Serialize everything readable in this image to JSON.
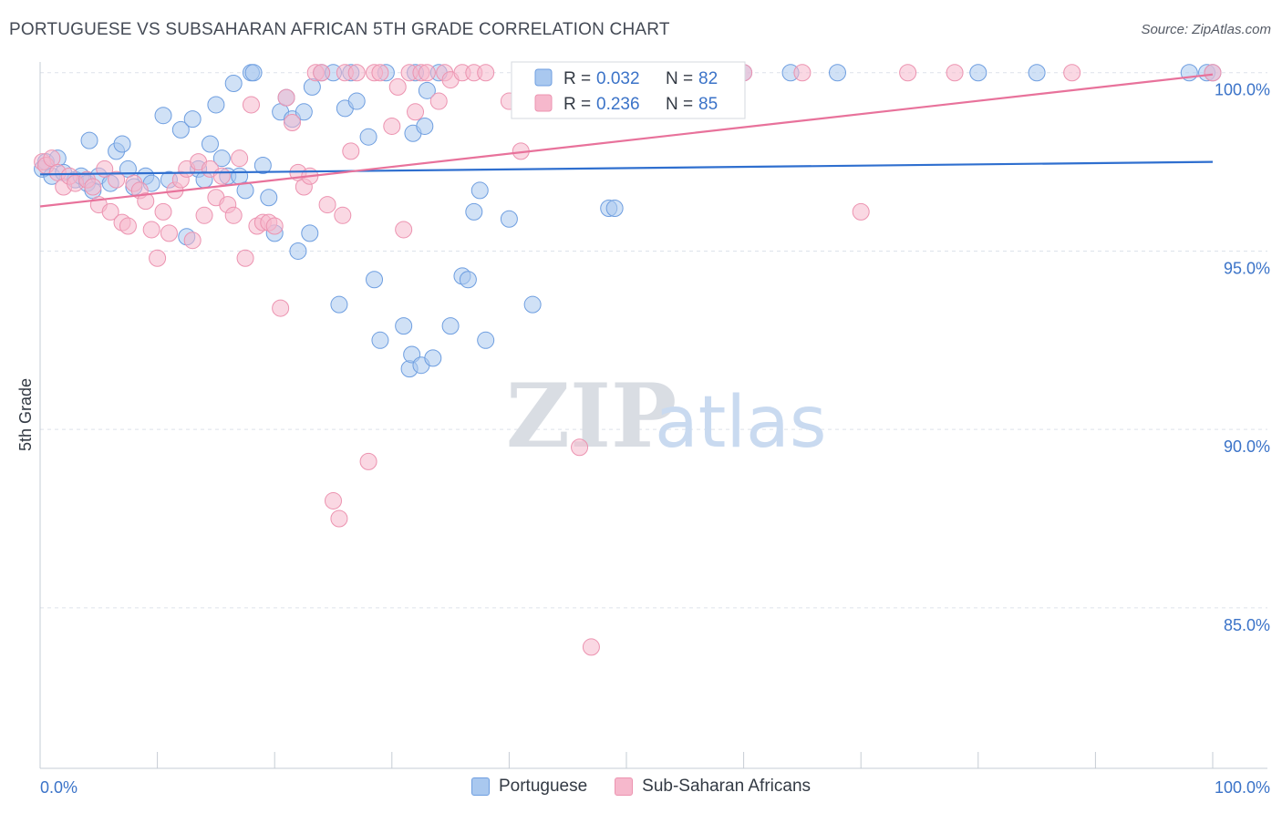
{
  "title": "PORTUGUESE VS SUBSAHARAN AFRICAN 5TH GRADE CORRELATION CHART",
  "source": "Source: ZipAtlas.com",
  "watermark": {
    "zip": "ZIP",
    "atlas": "atlas"
  },
  "colors": {
    "blue_fill": "#a9c8ef",
    "blue_stroke": "#6e9ee0",
    "blue_line": "#2f6fcf",
    "pink_fill": "#f6b8cc",
    "pink_stroke": "#ec93b0",
    "pink_line": "#e8729b",
    "axis_label": "#3b73c8",
    "grid": "#dde2ea"
  },
  "legend_stats": [
    {
      "r_label": "R = ",
      "r_value": "0.032",
      "n_label": "N = ",
      "n_value": "82"
    },
    {
      "r_label": "R = ",
      "r_value": "0.236",
      "n_label": "N = ",
      "n_value": "85"
    }
  ],
  "chart_data": {
    "type": "scatter",
    "title": "PORTUGUESE VS SUBSAHARAN AFRICAN 5TH GRADE CORRELATION CHART",
    "xlabel": "",
    "ylabel": "5th Grade",
    "xlim": [
      0,
      100
    ],
    "ylim": [
      80.5,
      100.3
    ],
    "x_tick_labels": [
      "0.0%",
      "100.0%"
    ],
    "y_ticks": [
      85,
      90,
      95,
      100
    ],
    "y_tick_labels": [
      "85.0%",
      "90.0%",
      "95.0%",
      "100.0%"
    ],
    "grid": true,
    "legend_position": "top-center",
    "series": [
      {
        "name": "Portuguese",
        "r": 0.032,
        "n": 82,
        "trend": {
          "x": [
            0,
            100
          ],
          "y": [
            97.15,
            97.5
          ]
        },
        "points": [
          [
            0.2,
            97.3
          ],
          [
            0.5,
            97.5
          ],
          [
            1.0,
            97.1
          ],
          [
            1.5,
            97.6
          ],
          [
            2.0,
            97.2
          ],
          [
            3.0,
            97.0
          ],
          [
            3.5,
            97.1
          ],
          [
            4.0,
            96.9
          ],
          [
            4.5,
            96.7
          ],
          [
            4.2,
            98.1
          ],
          [
            5.0,
            97.1
          ],
          [
            6.0,
            96.9
          ],
          [
            6.5,
            97.8
          ],
          [
            7.0,
            98.0
          ],
          [
            7.5,
            97.3
          ],
          [
            8.0,
            96.8
          ],
          [
            9.0,
            97.1
          ],
          [
            9.5,
            96.9
          ],
          [
            10.5,
            98.8
          ],
          [
            11.0,
            97.0
          ],
          [
            12.0,
            98.4
          ],
          [
            12.5,
            95.4
          ],
          [
            13.0,
            98.7
          ],
          [
            13.5,
            97.3
          ],
          [
            14.0,
            97.0
          ],
          [
            14.5,
            98.0
          ],
          [
            15.0,
            99.1
          ],
          [
            15.5,
            97.6
          ],
          [
            16.0,
            97.1
          ],
          [
            16.5,
            99.7
          ],
          [
            17.0,
            97.1
          ],
          [
            17.5,
            96.7
          ],
          [
            18.0,
            100.0
          ],
          [
            18.2,
            100.0
          ],
          [
            19.0,
            97.4
          ],
          [
            19.5,
            96.5
          ],
          [
            20.0,
            95.5
          ],
          [
            20.5,
            98.9
          ],
          [
            21.0,
            99.3
          ],
          [
            21.5,
            98.7
          ],
          [
            22.0,
            95.0
          ],
          [
            22.5,
            98.9
          ],
          [
            23.0,
            95.5
          ],
          [
            23.2,
            99.6
          ],
          [
            24.0,
            100.0
          ],
          [
            25.0,
            100.0
          ],
          [
            25.5,
            93.5
          ],
          [
            26.0,
            99.0
          ],
          [
            26.5,
            100.0
          ],
          [
            27.0,
            99.2
          ],
          [
            28.0,
            98.2
          ],
          [
            28.5,
            94.2
          ],
          [
            29.0,
            92.5
          ],
          [
            29.5,
            100.0
          ],
          [
            31.0,
            92.9
          ],
          [
            31.5,
            91.7
          ],
          [
            31.7,
            92.1
          ],
          [
            31.8,
            98.3
          ],
          [
            32.0,
            100.0
          ],
          [
            32.5,
            91.8
          ],
          [
            32.8,
            98.5
          ],
          [
            33.0,
            99.5
          ],
          [
            33.5,
            92.0
          ],
          [
            34.0,
            100.0
          ],
          [
            35.0,
            92.9
          ],
          [
            36.0,
            94.3
          ],
          [
            36.5,
            94.2
          ],
          [
            37.0,
            96.1
          ],
          [
            37.5,
            96.7
          ],
          [
            38.0,
            92.5
          ],
          [
            40.0,
            95.9
          ],
          [
            42.0,
            93.5
          ],
          [
            48.5,
            96.2
          ],
          [
            49.0,
            96.2
          ],
          [
            60.0,
            100.0
          ],
          [
            64.0,
            100.0
          ],
          [
            68.0,
            100.0
          ],
          [
            80.0,
            100.0
          ],
          [
            85.0,
            100.0
          ],
          [
            98.0,
            100.0
          ],
          [
            99.5,
            100.0
          ],
          [
            100.0,
            100.0
          ]
        ]
      },
      {
        "name": "Sub-Saharan Africans",
        "r": 0.236,
        "n": 85,
        "trend": {
          "x": [
            0,
            100
          ],
          "y": [
            96.25,
            99.95
          ]
        },
        "points": [
          [
            0.2,
            97.5
          ],
          [
            0.5,
            97.4
          ],
          [
            1.0,
            97.6
          ],
          [
            1.5,
            97.2
          ],
          [
            2.0,
            96.8
          ],
          [
            2.5,
            97.1
          ],
          [
            3.0,
            96.9
          ],
          [
            4.0,
            97.0
          ],
          [
            4.5,
            96.8
          ],
          [
            5.0,
            96.3
          ],
          [
            5.5,
            97.3
          ],
          [
            6.0,
            96.1
          ],
          [
            6.5,
            97.0
          ],
          [
            7.0,
            95.8
          ],
          [
            7.5,
            95.7
          ],
          [
            8.0,
            96.9
          ],
          [
            8.5,
            96.7
          ],
          [
            9.0,
            96.4
          ],
          [
            9.5,
            95.6
          ],
          [
            10.0,
            94.8
          ],
          [
            10.5,
            96.1
          ],
          [
            11.0,
            95.5
          ],
          [
            11.5,
            96.7
          ],
          [
            12.0,
            97.0
          ],
          [
            12.5,
            97.3
          ],
          [
            13.0,
            95.3
          ],
          [
            13.5,
            97.5
          ],
          [
            14.0,
            96.0
          ],
          [
            14.5,
            97.3
          ],
          [
            15.0,
            96.5
          ],
          [
            15.5,
            97.1
          ],
          [
            16.0,
            96.3
          ],
          [
            16.5,
            96.0
          ],
          [
            17.0,
            97.6
          ],
          [
            17.5,
            94.8
          ],
          [
            18.0,
            99.1
          ],
          [
            18.5,
            95.7
          ],
          [
            19.0,
            95.8
          ],
          [
            19.5,
            95.8
          ],
          [
            20.0,
            95.7
          ],
          [
            20.5,
            93.4
          ],
          [
            21.0,
            99.3
          ],
          [
            21.5,
            98.6
          ],
          [
            22.0,
            97.2
          ],
          [
            22.5,
            96.8
          ],
          [
            23.0,
            97.1
          ],
          [
            23.5,
            100.0
          ],
          [
            24.0,
            100.0
          ],
          [
            24.5,
            96.3
          ],
          [
            25.0,
            88.0
          ],
          [
            25.5,
            87.5
          ],
          [
            25.8,
            96.0
          ],
          [
            26.0,
            100.0
          ],
          [
            26.5,
            97.8
          ],
          [
            27.0,
            100.0
          ],
          [
            28.0,
            89.1
          ],
          [
            28.5,
            100.0
          ],
          [
            29.0,
            100.0
          ],
          [
            30.0,
            98.5
          ],
          [
            30.5,
            99.6
          ],
          [
            31.0,
            95.6
          ],
          [
            31.5,
            100.0
          ],
          [
            32.0,
            98.9
          ],
          [
            32.5,
            100.0
          ],
          [
            33.0,
            100.0
          ],
          [
            34.0,
            99.2
          ],
          [
            34.5,
            100.0
          ],
          [
            35.0,
            99.8
          ],
          [
            36.0,
            100.0
          ],
          [
            37.0,
            100.0
          ],
          [
            38.0,
            100.0
          ],
          [
            40.0,
            99.2
          ],
          [
            41.0,
            97.8
          ],
          [
            44.0,
            100.0
          ],
          [
            46.0,
            89.5
          ],
          [
            47.0,
            83.9
          ],
          [
            50.0,
            100.0
          ],
          [
            55.0,
            100.0
          ],
          [
            60.0,
            100.0
          ],
          [
            65.0,
            100.0
          ],
          [
            70.0,
            96.1
          ],
          [
            74.0,
            100.0
          ],
          [
            78.0,
            100.0
          ],
          [
            88.0,
            100.0
          ],
          [
            100.0,
            100.0
          ]
        ]
      }
    ]
  }
}
